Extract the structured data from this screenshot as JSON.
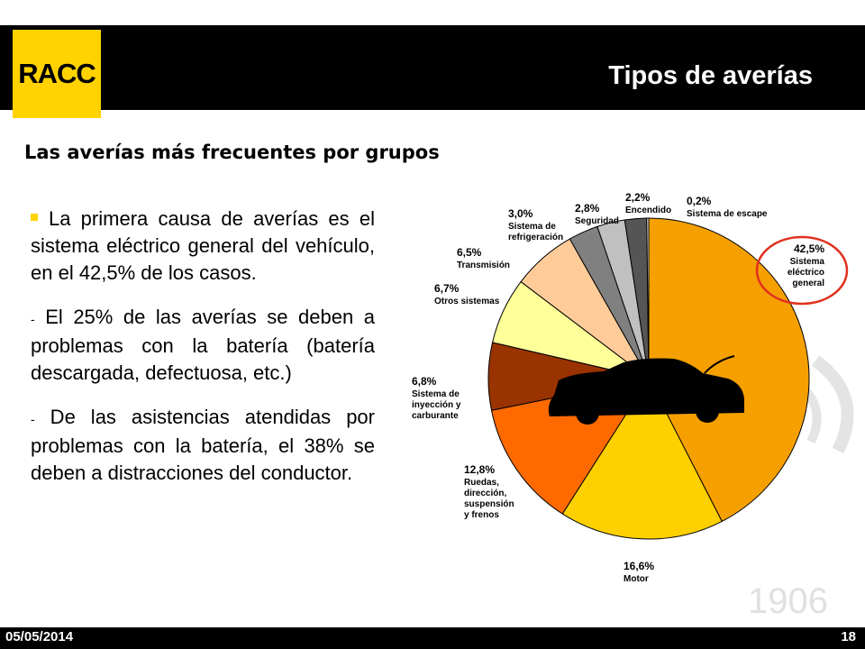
{
  "header": {
    "logo_text": "RACC",
    "title": "Tipos de averías"
  },
  "subtitle": "Las averías más frecuentes por grupos",
  "paragraphs": [
    {
      "prefix": "",
      "text": "La primera causa de averías es el sistema eléctrico general del vehículo, en el 42,5% de los casos."
    },
    {
      "prefix": "-",
      "text": " El 25% de las averías se deben a problemas con la batería (batería descargada, defectuosa, etc.)"
    },
    {
      "prefix": "-",
      "text": " De las asistencias atendidas por problemas con la batería, el 38% se deben a distracciones del conductor."
    }
  ],
  "footer": {
    "date": "05/05/2014",
    "page": "18"
  },
  "watermark": {
    "year": "1906"
  },
  "colors": {
    "brand_yellow": "#FFD200",
    "highlight_circle": "#E0301E"
  },
  "chart_data": {
    "type": "pie",
    "slices": [
      {
        "pct_label": "42,5%",
        "name": [
          "Sistema",
          "eléctrico",
          "general"
        ],
        "value": 42.5,
        "color": "#F5A000"
      },
      {
        "pct_label": "16,6%",
        "name": [
          "Motor"
        ],
        "value": 16.6,
        "color": "#FFD000"
      },
      {
        "pct_label": "12,8%",
        "name": [
          "Ruedas,",
          "dirección,",
          "suspensión",
          "y frenos"
        ],
        "value": 12.8,
        "color": "#FF6A00"
      },
      {
        "pct_label": "6,8%",
        "name": [
          "Sistema de",
          "inyección y",
          "carburante"
        ],
        "value": 6.8,
        "color": "#993300"
      },
      {
        "pct_label": "6,7%",
        "name": [
          "Otros sistemas"
        ],
        "value": 6.7,
        "color": "#FFFF99"
      },
      {
        "pct_label": "6,5%",
        "name": [
          "Transmisión"
        ],
        "value": 6.5,
        "color": "#FFCC99"
      },
      {
        "pct_label": "3,0%",
        "name": [
          "Sistema de",
          "refrigeración"
        ],
        "value": 3.0,
        "color": "#808080"
      },
      {
        "pct_label": "2,8%",
        "name": [
          "Seguridad"
        ],
        "value": 2.8,
        "color": "#C0C0C0"
      },
      {
        "pct_label": "2,2%",
        "name": [
          "Encendido"
        ],
        "value": 2.2,
        "color": "#555555"
      },
      {
        "pct_label": "0,2%",
        "name": [
          "Sistema de escape"
        ],
        "value": 0.2,
        "color": "#EEEEEE"
      }
    ],
    "highlighted": "42,5%"
  }
}
